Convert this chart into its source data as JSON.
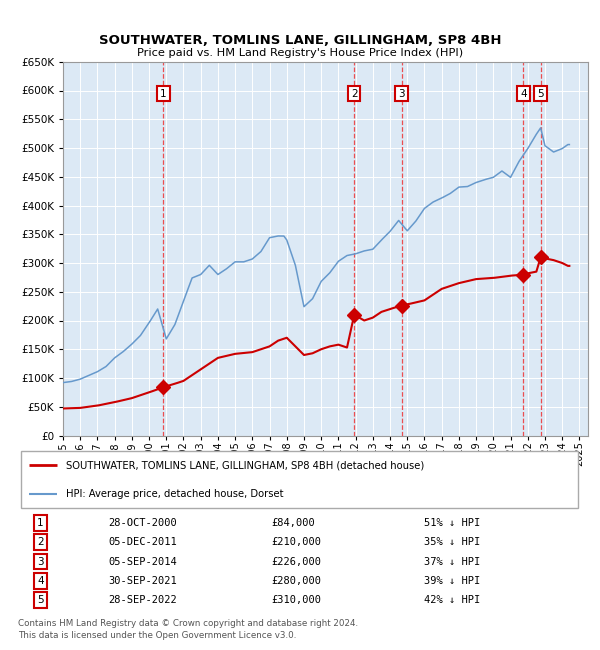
{
  "title": "SOUTHWATER, TOMLINS LANE, GILLINGHAM, SP8 4BH",
  "subtitle": "Price paid vs. HM Land Registry's House Price Index (HPI)",
  "ytick_values": [
    0,
    50000,
    100000,
    150000,
    200000,
    250000,
    300000,
    350000,
    400000,
    450000,
    500000,
    550000,
    600000,
    650000
  ],
  "xlim_start": 1995.0,
  "xlim_end": 2025.5,
  "ylim_min": 0,
  "ylim_max": 650000,
  "background_color": "#dce9f5",
  "grid_color": "#ffffff",
  "sale_line_color": "#cc0000",
  "hpi_line_color": "#6699cc",
  "dashed_line_color": "#ee3333",
  "sale_marker_color": "#cc0000",
  "legend_line1": "SOUTHWATER, TOMLINS LANE, GILLINGHAM, SP8 4BH (detached house)",
  "legend_line2": "HPI: Average price, detached house, Dorset",
  "footer_line1": "Contains HM Land Registry data © Crown copyright and database right 2024.",
  "footer_line2": "This data is licensed under the Open Government Licence v3.0.",
  "sale_events": [
    {
      "num": 1,
      "date_str": "28-OCT-2000",
      "year": 2000.83,
      "price": 84000,
      "hpi_pct": "51%",
      "direction": "↓"
    },
    {
      "num": 2,
      "date_str": "05-DEC-2011",
      "year": 2011.92,
      "price": 210000,
      "hpi_pct": "35%",
      "direction": "↓"
    },
    {
      "num": 3,
      "date_str": "05-SEP-2014",
      "year": 2014.67,
      "price": 226000,
      "hpi_pct": "37%",
      "direction": "↓"
    },
    {
      "num": 4,
      "date_str": "30-SEP-2021",
      "year": 2021.75,
      "price": 280000,
      "hpi_pct": "39%",
      "direction": "↓"
    },
    {
      "num": 5,
      "date_str": "28-SEP-2022",
      "year": 2022.75,
      "price": 310000,
      "hpi_pct": "42%",
      "direction": "↓"
    }
  ]
}
